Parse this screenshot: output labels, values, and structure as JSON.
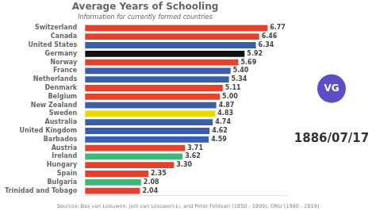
{
  "chart_data": {
    "type": "bar",
    "orientation": "horizontal",
    "title": "Average Years of Schooling",
    "subtitle": "Information for currently formed countries",
    "categories": [
      "Switzerland",
      "Canada",
      "United States",
      "Germany",
      "Norway",
      "France",
      "Netherlands",
      "Denmark",
      "Belgium",
      "New Zealand",
      "Sweden",
      "Australia",
      "United Kingdom",
      "Barbados",
      "Austria",
      "Ireland",
      "Hungary",
      "Spain",
      "Bulgaria",
      "Trinidad and Tobago"
    ],
    "values": [
      6.77,
      6.46,
      6.34,
      5.92,
      5.69,
      5.4,
      5.34,
      5.11,
      5.0,
      4.87,
      4.83,
      4.74,
      4.62,
      4.59,
      3.71,
      3.62,
      3.3,
      2.35,
      2.08,
      2.04
    ],
    "value_labels": [
      "6.77",
      "6.46",
      "6.34",
      "5.92",
      "5.69",
      "5.40",
      "5.34",
      "5.11",
      "5.00",
      "4.87",
      "4.83",
      "4.74",
      "4.62",
      "4.59",
      "3.71",
      "3.62",
      "3.30",
      "2.35",
      "2.08",
      "2.04"
    ],
    "colors": [
      "#e8402a",
      "#e8402a",
      "#3a5fa8",
      "#111111",
      "#e8402a",
      "#3a5fa8",
      "#3a5fa8",
      "#e8402a",
      "#e8402a",
      "#3a5fa8",
      "#e8d800",
      "#3a5fa8",
      "#3a5fa8",
      "#3a5fb8",
      "#e8402a",
      "#3db87a",
      "#e8402a",
      "#e8402a",
      "#3db87a",
      "#e8402a"
    ],
    "xlim": [
      0,
      7.5
    ],
    "grid": false,
    "data_labels": true,
    "tick_labels": "y",
    "annotations": [
      "1886/07/17",
      "VG",
      "Sources: Bas van Leeuwen, Jieli van Leeuwen-Li, and Peter Foldvari (1850 - 1999), ONU (1990 - 2019)"
    ]
  }
}
